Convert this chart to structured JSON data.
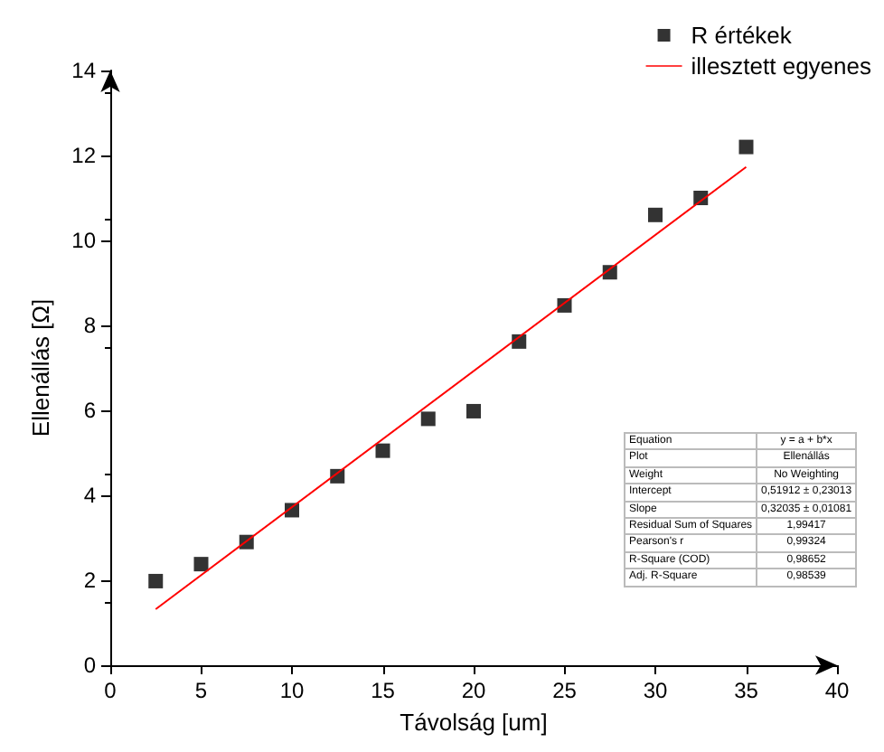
{
  "chart_data": {
    "type": "scatter",
    "xlabel": "Távolság [um]",
    "ylabel": "Ellenállás [Ω]",
    "xlim": [
      0,
      40
    ],
    "xticks": [
      0,
      5,
      10,
      15,
      20,
      25,
      30,
      35,
      40
    ],
    "ylim": [
      0,
      14
    ],
    "yticks": [
      0,
      2,
      4,
      6,
      8,
      10,
      12,
      14
    ],
    "grid": false,
    "legend": "top right",
    "marker": "square",
    "series": [
      {
        "name": "R értékek",
        "color": "#000000",
        "x": [
          2.5,
          5,
          7.5,
          10,
          12.5,
          15,
          17.5,
          20,
          22.5,
          25,
          27.5,
          30,
          32.5,
          35
        ],
        "values": [
          1.98,
          2.38,
          2.9,
          3.65,
          4.45,
          5.05,
          5.8,
          5.98,
          7.62,
          8.47,
          9.25,
          10.6,
          11.0,
          12.2
        ]
      },
      {
        "name": "illesztett egyenes",
        "type": "line",
        "color": "#ff0000",
        "marker": "none",
        "line_style": "solid",
        "x": [
          2.5,
          35
        ],
        "values": [
          1.32,
          11.73
        ]
      }
    ],
    "annotations": [
      "Equation",
      "y = a + b*x",
      "Plot",
      "Ellenállás",
      "Weight",
      "No Weighting",
      "Intercept",
      "0,51912 ± 0,23013",
      "Slope",
      "0,32035 ± 0,01081",
      "Residual Sum of Squares",
      "1,99417",
      "Pearson's r",
      "0,99324",
      "R-Square (COD)",
      "0,98652",
      "Adj. R-Square",
      "0,98539"
    ]
  }
}
